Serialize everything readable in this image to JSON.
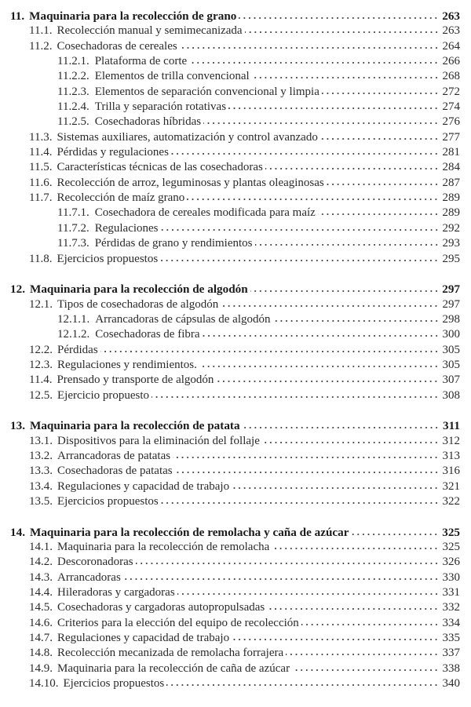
{
  "chapters": [
    {
      "num": "11.",
      "title": "Maquinaria para la recolección de grano",
      "page": "263",
      "items": [
        {
          "level": 2,
          "num": "11.1.",
          "title": "Recolección manual y semimecanizada",
          "page": "263"
        },
        {
          "level": 2,
          "num": "11.2.",
          "title": "Cosechadoras de cereales",
          "page": "264"
        },
        {
          "level": 3,
          "num": "11.2.1.",
          "title": "Plataforma de corte",
          "page": "266"
        },
        {
          "level": 3,
          "num": "11.2.2.",
          "title": "Elementos de trilla convencional",
          "page": "268"
        },
        {
          "level": 3,
          "num": "11.2.3.",
          "title": "Elementos de separación convencional y limpia",
          "page": "272"
        },
        {
          "level": 3,
          "num": "11.2.4.",
          "title": "Trilla y separación rotativas",
          "page": "274"
        },
        {
          "level": 3,
          "num": "11.2.5.",
          "title": "Cosechadoras híbridas",
          "page": "276"
        },
        {
          "level": 2,
          "num": "11.3.",
          "title": "Sistemas auxiliares, automatización y control avanzado",
          "page": "277"
        },
        {
          "level": 2,
          "num": "11.4.",
          "title": "Pérdidas y regulaciones",
          "page": "281"
        },
        {
          "level": 2,
          "num": "11.5.",
          "title": "Características técnicas de las cosechadoras",
          "page": "284"
        },
        {
          "level": 2,
          "num": "11.6.",
          "title": "Recolección de arroz, leguminosas y plantas oleaginosas",
          "page": "287"
        },
        {
          "level": 2,
          "num": "11.7.",
          "title": "Recolección de maíz grano",
          "page": "289"
        },
        {
          "level": 3,
          "num": "11.7.1.",
          "title": "Cosechadora de cereales modificada para maíz",
          "page": "289"
        },
        {
          "level": 3,
          "num": "11.7.2.",
          "title": "Regulaciones",
          "page": "292"
        },
        {
          "level": 3,
          "num": "11.7.3.",
          "title": "Pérdidas de grano y rendimientos",
          "page": "293"
        },
        {
          "level": 2,
          "num": "11.8.",
          "title": "Ejercicios propuestos",
          "page": "295"
        }
      ]
    },
    {
      "num": "12.",
      "title": "Maquinaria para la recolección de algodón",
      "page": "297",
      "items": [
        {
          "level": 2,
          "num": "12.1.",
          "title": "Tipos de cosechadoras de algodón",
          "page": "297"
        },
        {
          "level": 3,
          "num": "12.1.1.",
          "title": "Arrancadoras de cápsulas de algodón",
          "page": "298"
        },
        {
          "level": 3,
          "num": "12.1.2.",
          "title": "Cosechadoras de fibra",
          "page": "300"
        },
        {
          "level": 2,
          "num": "12.2.",
          "title": "Pérdidas",
          "page": "305"
        },
        {
          "level": 2,
          "num": "12.3.",
          "title": "Regulaciones y rendimientos.",
          "page": "305"
        },
        {
          "level": 2,
          "num": "11.4.",
          "title": "Prensado y transporte de algodón",
          "page": "307"
        },
        {
          "level": 2,
          "num": "12.5.",
          "title": "Ejercicio propuesto",
          "page": "308"
        }
      ]
    },
    {
      "num": "13.",
      "title": "Maquinaria para la recolección de patata",
      "page": "311",
      "items": [
        {
          "level": 2,
          "num": "13.1.",
          "title": "Dispositivos para la eliminación del follaje",
          "page": "312"
        },
        {
          "level": 2,
          "num": "13.2.",
          "title": "Arrancadoras de patatas",
          "page": "313"
        },
        {
          "level": 2,
          "num": "13.3.",
          "title": "Cosechadoras de patatas",
          "page": "316"
        },
        {
          "level": 2,
          "num": "13.4.",
          "title": "Regulaciones y capacidad de trabajo",
          "page": "321"
        },
        {
          "level": 2,
          "num": "13.5.",
          "title": "Ejercicios propuestos",
          "page": "322"
        }
      ]
    },
    {
      "num": "14.",
      "title": "Maquinaria para la recolección de remolacha y caña de azúcar",
      "page": "325",
      "items": [
        {
          "level": 2,
          "num": "14.1.",
          "title": "Maquinaria para la recolección de remolacha",
          "page": "325"
        },
        {
          "level": 2,
          "num": "14.2.",
          "title": "Descoronadoras",
          "page": "326"
        },
        {
          "level": 2,
          "num": "14.3.",
          "title": "Arrancadoras",
          "page": "330"
        },
        {
          "level": 2,
          "num": "14.4.",
          "title": "Hileradoras y cargadoras",
          "page": "331"
        },
        {
          "level": 2,
          "num": "14.5.",
          "title": "Cosechadoras y cargadoras autopropulsadas",
          "page": "332"
        },
        {
          "level": 2,
          "num": "14.6.",
          "title": "Criterios para la elección del equipo de recolección",
          "page": "334"
        },
        {
          "level": 2,
          "num": "14.7.",
          "title": "Regulaciones y capacidad de trabajo",
          "page": "335"
        },
        {
          "level": 2,
          "num": "14.8.",
          "title": "Recolección mecanizada de remolacha forrajera",
          "page": "337"
        },
        {
          "level": 2,
          "num": "14.9.",
          "title": "Maquinaria para la recolección de caña de azúcar",
          "page": "338"
        },
        {
          "level": 2,
          "num": "14.10.",
          "title": "Ejercicios propuestos",
          "page": "340"
        }
      ]
    }
  ]
}
